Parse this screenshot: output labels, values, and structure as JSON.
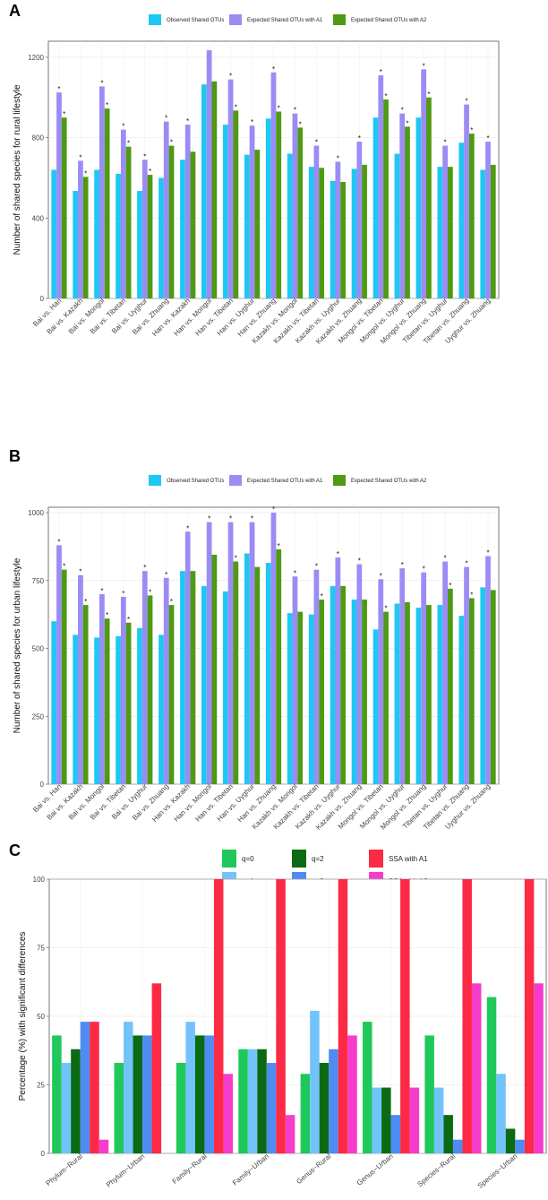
{
  "figure": {
    "panels": [
      {
        "letter": "A"
      },
      {
        "letter": "B"
      },
      {
        "letter": "C"
      }
    ]
  },
  "chart_data": [
    {
      "type": "bar",
      "panel": "A",
      "ylabel": "Number of shared species for rural lifestyle",
      "ylim": [
        0,
        1280
      ],
      "yticks": [
        0,
        400,
        800,
        1200
      ],
      "grid": true,
      "legend_position": "top",
      "colors": [
        "#1ec8f2",
        "#9b8cf5",
        "#4e9a12"
      ],
      "categories": [
        "Bai vs. Han",
        "Bai vs. Kazakh",
        "Bai vs. Mongol",
        "Bai vs. Tibetan",
        "Bai vs. Uyghur",
        "Bai vs. Zhuang",
        "Han vs. Kazakh",
        "Han vs. Mongol",
        "Han vs. Tibetan",
        "Han vs. Uyghur",
        "Han vs. Zhuang",
        "Kazakh vs. Mongol",
        "Kazakh vs. Tibetan",
        "Kazakh vs. Uyghur",
        "Kazakh vs. Zhuang",
        "Mongol vs. Tibetan",
        "Mongol vs. Uyghur",
        "Mongol vs. Zhuang",
        "Tibetan vs. Uyghur",
        "Tibetan vs. Zhuang",
        "Uyghur vs. Zhuang"
      ],
      "series": [
        {
          "name": "Observed Shared OTUs",
          "values": [
            640,
            535,
            640,
            620,
            535,
            600,
            690,
            1065,
            865,
            715,
            895,
            720,
            655,
            585,
            645,
            900,
            720,
            900,
            655,
            775,
            640
          ],
          "stars": [
            false,
            false,
            false,
            false,
            false,
            false,
            false,
            false,
            false,
            false,
            false,
            false,
            false,
            false,
            false,
            false,
            false,
            false,
            false,
            false,
            false
          ]
        },
        {
          "name": "Expected Shared OTUs with A1",
          "values": [
            1025,
            685,
            1055,
            840,
            690,
            880,
            865,
            1235,
            1090,
            860,
            1125,
            920,
            760,
            680,
            780,
            1110,
            920,
            1140,
            760,
            965,
            780
          ],
          "stars": [
            true,
            true,
            true,
            true,
            true,
            true,
            true,
            false,
            true,
            true,
            true,
            true,
            true,
            true,
            true,
            true,
            true,
            true,
            true,
            true,
            true
          ]
        },
        {
          "name": "Expected Shared OTUs with A2",
          "values": [
            900,
            605,
            945,
            755,
            615,
            760,
            730,
            1080,
            935,
            740,
            930,
            850,
            650,
            580,
            665,
            990,
            855,
            1000,
            655,
            820,
            665
          ],
          "stars": [
            true,
            true,
            true,
            true,
            true,
            true,
            false,
            false,
            true,
            false,
            true,
            true,
            false,
            false,
            false,
            true,
            true,
            true,
            false,
            true,
            false
          ]
        }
      ]
    },
    {
      "type": "bar",
      "panel": "B",
      "ylabel": "Number of shared species for urban lifestyle",
      "ylim": [
        0,
        1020
      ],
      "yticks": [
        0,
        250,
        500,
        750,
        1000
      ],
      "grid": true,
      "legend_position": "top",
      "colors": [
        "#1ec8f2",
        "#9b8cf5",
        "#4e9a12"
      ],
      "categories": [
        "Bai vs. Han",
        "Bai vs. Kazakh",
        "Bai vs. Mongol",
        "Bai vs. Tibetan",
        "Bai vs. Uyghur",
        "Bai vs. Zhuang",
        "Han vs. Kazakh",
        "Han vs. Mongol",
        "Han vs. Tibetan",
        "Han vs. Uyghur",
        "Han vs. Zhuang",
        "Kazakh vs. Mongol",
        "Kazakh vs. Tibetan",
        "Kazakh vs. Uyghur",
        "Kazakh vs. Zhuang",
        "Mongol vs. Tibetan",
        "Mongol vs. Uyghur",
        "Mongol vs. Zhuang",
        "Tibetan vs. Uyghur",
        "Tibetan vs. Zhuang",
        "Uyghur vs. Zhuang"
      ],
      "series": [
        {
          "name": "Observed Shared OTUs",
          "values": [
            600,
            550,
            540,
            545,
            575,
            550,
            785,
            730,
            710,
            850,
            815,
            630,
            625,
            730,
            680,
            570,
            665,
            650,
            660,
            620,
            725
          ],
          "stars": [
            false,
            false,
            false,
            false,
            false,
            false,
            false,
            false,
            false,
            false,
            false,
            false,
            false,
            false,
            false,
            false,
            false,
            false,
            false,
            false,
            false
          ]
        },
        {
          "name": "Expected Shared OTUs with A1",
          "values": [
            880,
            770,
            700,
            690,
            785,
            760,
            930,
            965,
            965,
            965,
            1000,
            765,
            790,
            835,
            810,
            755,
            795,
            780,
            820,
            800,
            840
          ],
          "stars": [
            true,
            true,
            true,
            true,
            true,
            true,
            true,
            true,
            true,
            true,
            true,
            true,
            true,
            true,
            true,
            true,
            true,
            true,
            true,
            true,
            true
          ]
        },
        {
          "name": "Expected Shared OTUs with A2",
          "values": [
            790,
            660,
            610,
            595,
            695,
            660,
            785,
            845,
            820,
            800,
            865,
            635,
            680,
            730,
            680,
            635,
            670,
            660,
            720,
            685,
            715
          ],
          "stars": [
            true,
            true,
            true,
            true,
            true,
            true,
            false,
            false,
            true,
            false,
            true,
            false,
            true,
            false,
            false,
            true,
            false,
            false,
            true,
            true,
            false
          ]
        }
      ]
    },
    {
      "type": "bar",
      "panel": "C",
      "ylabel": "Percentage (%) with significant differences",
      "ylim": [
        0,
        100
      ],
      "yticks": [
        0,
        25,
        50,
        75,
        100
      ],
      "grid": true,
      "legend_position": "top",
      "categories": [
        "Phylum−Rural",
        "Phylum−Urban",
        "Family−Rural",
        "Family−Urban",
        "Genus−Rural",
        "Genus−Urban",
        "Species−Rural",
        "Species−Urban"
      ],
      "series": [
        {
          "name": "q=0",
          "color": "#1ec85a",
          "values": [
            43,
            33,
            33,
            38,
            29,
            48,
            43,
            57
          ]
        },
        {
          "name": "q=1",
          "color": "#73c3fb",
          "values": [
            33,
            48,
            48,
            38,
            52,
            24,
            24,
            29
          ]
        },
        {
          "name": "q=2",
          "color": "#0b6b14",
          "values": [
            38,
            43,
            43,
            38,
            33,
            24,
            14,
            9
          ]
        },
        {
          "name": "q=3",
          "color": "#4e8cf2",
          "values": [
            48,
            43,
            43,
            33,
            38,
            14,
            5,
            5
          ]
        },
        {
          "name": "SSA with A1",
          "color": "#fc2a44",
          "values": [
            48,
            62,
            100,
            100,
            100,
            100,
            100,
            100
          ]
        },
        {
          "name": "SSA with A2",
          "color": "#f53ccc",
          "values": [
            5,
            null,
            29,
            14,
            43,
            24,
            62,
            62
          ]
        }
      ],
      "legend_order": [
        "q=0",
        "q=2",
        "SSA with A1",
        "q=1",
        "q=3",
        "SSA with A2"
      ]
    }
  ]
}
